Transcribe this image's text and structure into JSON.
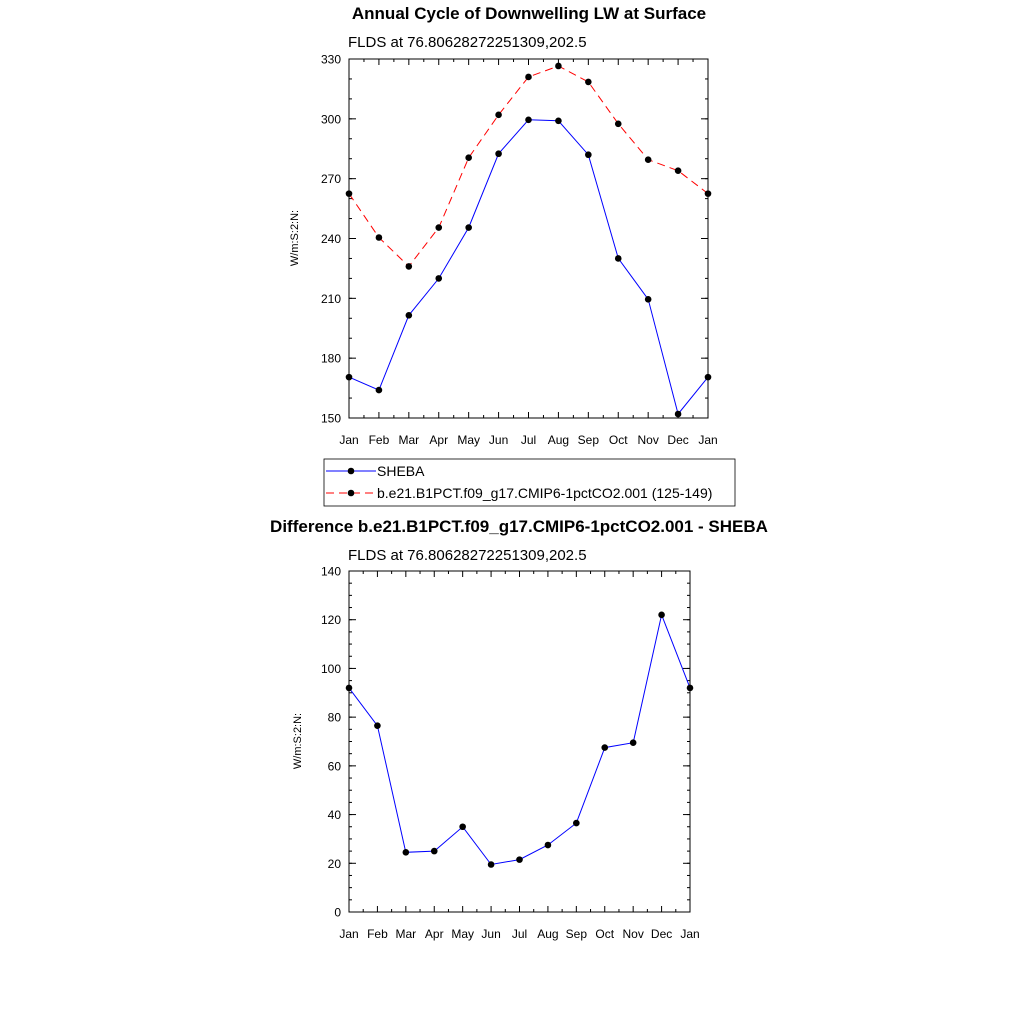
{
  "chart_data": [
    {
      "type": "line",
      "title": "Annual Cycle of Downwelling LW at Surface",
      "subtitle": "FLDS at 76.80628272251309,202.5",
      "ylabel": "W/m:S:2:N:",
      "xlabel": "",
      "categories": [
        "Jan",
        "Feb",
        "Mar",
        "Apr",
        "May",
        "Jun",
        "Jul",
        "Aug",
        "Sep",
        "Oct",
        "Nov",
        "Dec",
        "Jan"
      ],
      "ylim": [
        150,
        330
      ],
      "yticks": [
        150,
        180,
        210,
        240,
        270,
        300,
        330
      ],
      "legend_position": "below",
      "series": [
        {
          "name": "SHEBA",
          "color": "#0000ff",
          "dash": "solid",
          "values": [
            170.5,
            164,
            201.5,
            220,
            245.5,
            282.5,
            299.5,
            299,
            282,
            230,
            209.5,
            152,
            170.5
          ]
        },
        {
          "name": "b.e21.B1PCT.f09_g17.CMIP6-1pctCO2.001 (125-149)",
          "color": "#ff0000",
          "dash": "dashed",
          "values": [
            262.5,
            240.5,
            226,
            245.5,
            280.5,
            302,
            321,
            326.5,
            318.5,
            297.5,
            279.5,
            274,
            262.5
          ]
        }
      ]
    },
    {
      "type": "line",
      "title": "Difference b.e21.B1PCT.f09_g17.CMIP6-1pctCO2.001 - SHEBA",
      "subtitle": "FLDS at 76.80628272251309,202.5",
      "ylabel": "W/m:S:2:N:",
      "xlabel": "",
      "categories": [
        "Jan",
        "Feb",
        "Mar",
        "Apr",
        "May",
        "Jun",
        "Jul",
        "Aug",
        "Sep",
        "Oct",
        "Nov",
        "Dec",
        "Jan"
      ],
      "ylim": [
        0,
        140
      ],
      "yticks": [
        0,
        20,
        40,
        60,
        80,
        100,
        120,
        140
      ],
      "series": [
        {
          "color": "#0000ff",
          "dash": "solid",
          "values": [
            92,
            76.5,
            24.5,
            25,
            35,
            19.5,
            21.5,
            27.5,
            36.5,
            67.5,
            69.5,
            122,
            92
          ]
        }
      ]
    }
  ]
}
